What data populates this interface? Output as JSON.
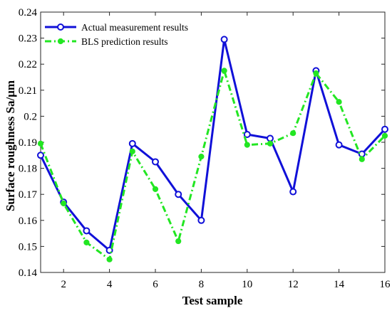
{
  "chart_data": {
    "type": "line",
    "xlabel": "Test sample",
    "ylabel": "Surface roughness Sa/μm",
    "xlim": [
      1,
      16
    ],
    "ylim": [
      0.14,
      0.24
    ],
    "xticks": [
      2,
      4,
      6,
      8,
      10,
      12,
      14,
      16
    ],
    "xtick_labels": [
      "2",
      "4",
      "6",
      "8",
      "10",
      "12",
      "14",
      "16"
    ],
    "yticks": [
      0.14,
      0.15,
      0.16,
      0.17,
      0.18,
      0.19,
      0.2,
      0.21,
      0.22,
      0.23,
      0.24
    ],
    "ytick_labels": [
      "0.14",
      "0.15",
      "0.16",
      "0.17",
      "0.18",
      "0.19",
      "0.2",
      "0.21",
      "0.22",
      "0.23",
      "0.24"
    ],
    "grid": false,
    "legend_position": "top-left",
    "x": [
      1,
      2,
      3,
      4,
      5,
      6,
      7,
      8,
      9,
      10,
      11,
      12,
      13,
      14,
      15,
      16
    ],
    "series": [
      {
        "name": "Actual measurement results",
        "color": "#1010d8",
        "style": "solid",
        "marker": "open-circle",
        "values": [
          0.185,
          0.167,
          0.156,
          0.1485,
          0.1895,
          0.1825,
          0.17,
          0.16,
          0.2295,
          0.193,
          0.1915,
          0.171,
          0.2175,
          0.189,
          0.1855,
          0.195
        ]
      },
      {
        "name": "BLS prediction results",
        "color": "#22e622",
        "style": "dash-dot",
        "marker": "filled-circle",
        "values": [
          0.1895,
          0.1665,
          0.1515,
          0.145,
          0.1865,
          0.172,
          0.152,
          0.1845,
          0.2175,
          0.189,
          0.1895,
          0.1935,
          0.2165,
          0.2055,
          0.1835,
          0.1925
        ]
      }
    ]
  }
}
